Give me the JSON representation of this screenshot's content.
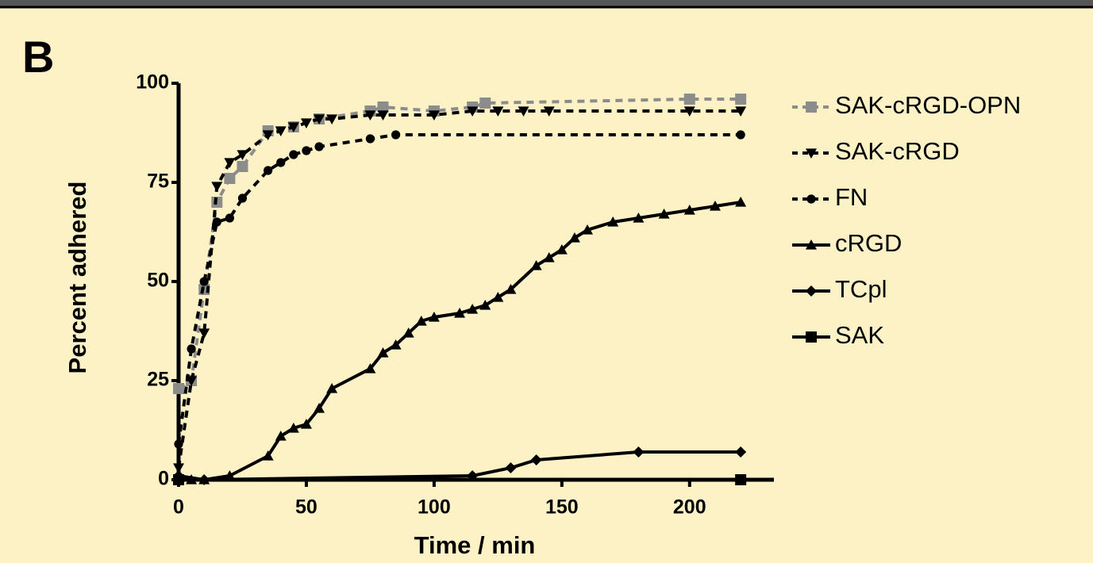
{
  "panel_label": "B",
  "chart_data": {
    "type": "line",
    "xlabel": "Time / min",
    "ylabel": "Percent adhered",
    "xlim": [
      0,
      233
    ],
    "ylim": [
      0,
      100
    ],
    "xticks": [
      0,
      50,
      100,
      150,
      200
    ],
    "yticks": [
      0,
      25,
      50,
      75,
      100
    ],
    "legend": "right",
    "series": [
      {
        "name": "SAK-cRGD-OPN",
        "color": "#8c8c8c",
        "dash": "dashed",
        "marker": "square",
        "x": [
          0,
          5,
          10,
          15,
          20,
          25,
          35,
          45,
          55,
          75,
          80,
          100,
          115,
          120,
          200,
          220
        ],
        "values": [
          23,
          25,
          48,
          70,
          76,
          79,
          88,
          89,
          91,
          93,
          94,
          93,
          94,
          95,
          96,
          96
        ]
      },
      {
        "name": "SAK-cRGD",
        "color": "#000000",
        "dash": "dashed",
        "marker": "triangle-down",
        "x": [
          0,
          5,
          10,
          15,
          20,
          25,
          35,
          40,
          45,
          50,
          55,
          60,
          75,
          80,
          100,
          115,
          125,
          135,
          145,
          200,
          220
        ],
        "values": [
          3,
          25,
          37,
          74,
          80,
          82,
          87,
          88,
          89,
          90,
          91,
          91,
          92,
          92,
          92,
          93,
          93,
          93,
          93,
          93,
          93
        ]
      },
      {
        "name": "FN",
        "color": "#000000",
        "dash": "dashed",
        "marker": "circle",
        "x": [
          0,
          5,
          10,
          15,
          20,
          25,
          35,
          40,
          45,
          50,
          55,
          75,
          85,
          220
        ],
        "values": [
          9,
          33,
          50,
          65,
          66,
          71,
          78,
          80,
          82,
          83,
          84,
          86,
          87,
          87
        ]
      },
      {
        "name": "cRGD",
        "color": "#000000",
        "dash": "solid",
        "marker": "triangle",
        "x": [
          0,
          5,
          10,
          20,
          35,
          40,
          45,
          50,
          55,
          60,
          75,
          80,
          85,
          90,
          95,
          100,
          110,
          115,
          120,
          125,
          130,
          140,
          145,
          150,
          155,
          160,
          170,
          180,
          190,
          200,
          210,
          220
        ],
        "values": [
          0,
          0,
          0,
          1,
          6,
          11,
          13,
          14,
          18,
          23,
          28,
          32,
          34,
          37,
          40,
          41,
          42,
          43,
          44,
          46,
          48,
          54,
          56,
          58,
          61,
          63,
          65,
          66,
          67,
          68,
          69,
          70
        ]
      },
      {
        "name": "TCpl",
        "color": "#000000",
        "dash": "solid",
        "marker": "diamond",
        "x": [
          0,
          10,
          115,
          130,
          140,
          180,
          220
        ],
        "values": [
          1,
          0,
          1,
          3,
          5,
          7,
          7
        ]
      },
      {
        "name": "SAK",
        "color": "#000000",
        "dash": "solid",
        "marker": "square",
        "x": [
          0,
          220
        ],
        "values": [
          0,
          0
        ]
      }
    ]
  }
}
